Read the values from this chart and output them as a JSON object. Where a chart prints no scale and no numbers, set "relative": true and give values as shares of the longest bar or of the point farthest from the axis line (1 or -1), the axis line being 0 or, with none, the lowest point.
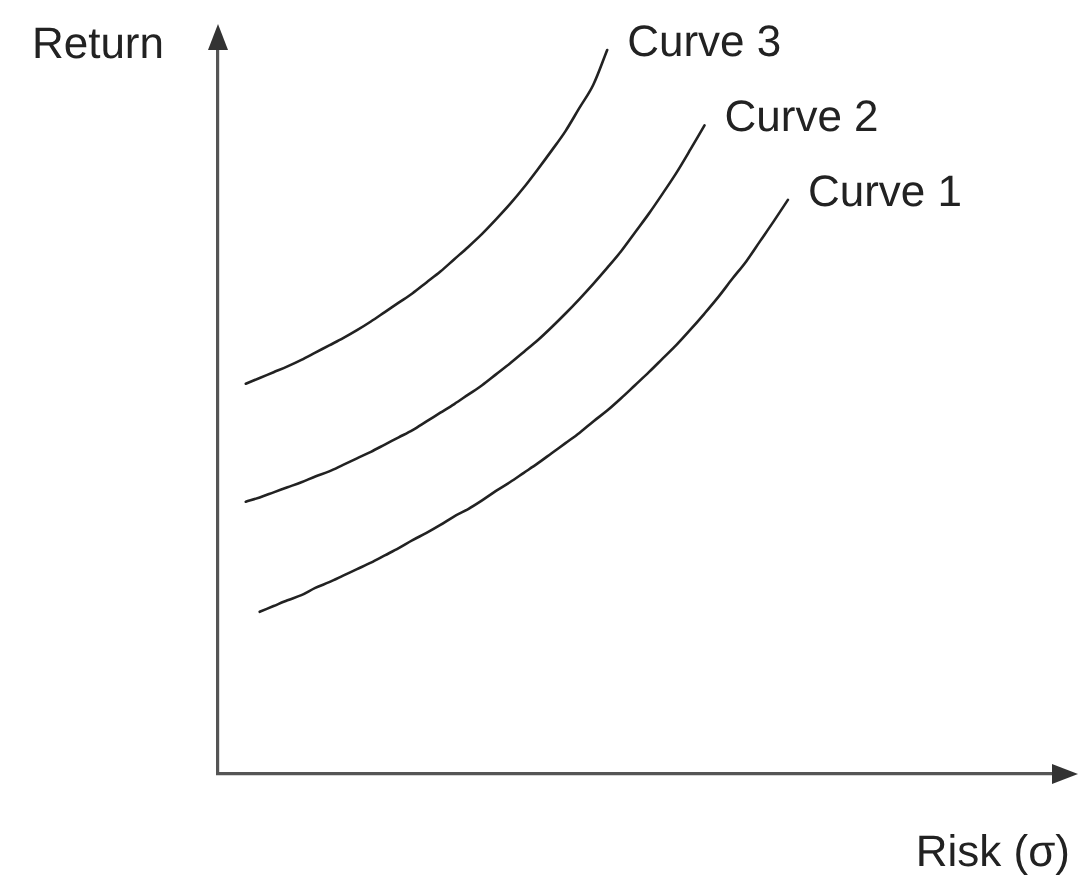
{
  "chart_data": {
    "type": "line",
    "relative": true,
    "xlabel": "Risk (σ)",
    "ylabel": "Return",
    "line_style": "solid",
    "categories": [
      null,
      null,
      null,
      null,
      null,
      null,
      null,
      null,
      null,
      null,
      null,
      null,
      null,
      null,
      null,
      null,
      null,
      null,
      null,
      null,
      null,
      null,
      null,
      null,
      null,
      null,
      null,
      null,
      null,
      null,
      null,
      null,
      null,
      null,
      null,
      null,
      null,
      null,
      null,
      null,
      null,
      null,
      null,
      null,
      null,
      null,
      null,
      null,
      null,
      null,
      null,
      null,
      null,
      null,
      null,
      null,
      null,
      null,
      null,
      null,
      null
    ],
    "series": [
      {
        "name": "Curve 1",
        "color": "#222222",
        "values": [
          null,
          null,
          null,
          0.224,
          0.232,
          0.24,
          0.247,
          0.257,
          0.265,
          0.274,
          0.283,
          0.292,
          0.302,
          0.312,
          0.323,
          0.333,
          0.344,
          0.356,
          0.366,
          0.378,
          0.391,
          0.403,
          0.416,
          0.429,
          0.443,
          0.457,
          0.471,
          0.487,
          0.502,
          0.519,
          0.537,
          0.555,
          0.574,
          0.593,
          0.614,
          0.636,
          0.659,
          0.684,
          0.708,
          0.736,
          0.764,
          0.793,
          null,
          null,
          null,
          null,
          null,
          null,
          null,
          null,
          null,
          null,
          null,
          null,
          null,
          null,
          null,
          null,
          null,
          null,
          null
        ]
      },
      {
        "name": "Curve 2",
        "color": "#222222",
        "values": [
          null,
          null,
          0.376,
          0.382,
          0.389,
          0.396,
          0.403,
          0.411,
          0.418,
          0.427,
          0.436,
          0.445,
          0.455,
          0.465,
          0.475,
          0.487,
          0.499,
          0.511,
          0.524,
          0.537,
          0.552,
          0.567,
          0.583,
          0.599,
          0.617,
          0.636,
          0.656,
          0.677,
          0.699,
          0.722,
          0.748,
          0.774,
          0.802,
          0.831,
          0.863,
          0.896,
          null,
          null,
          null,
          null,
          null,
          null,
          null,
          null,
          null,
          null,
          null,
          null,
          null,
          null,
          null,
          null,
          null,
          null,
          null,
          null,
          null,
          null,
          null,
          null,
          null
        ]
      },
      {
        "name": "Curve 3",
        "color": "#222222",
        "values": [
          null,
          null,
          0.539,
          0.547,
          0.555,
          0.563,
          0.572,
          0.582,
          0.592,
          0.602,
          0.613,
          0.625,
          0.638,
          0.651,
          0.664,
          0.679,
          0.694,
          0.711,
          0.728,
          0.746,
          0.766,
          0.787,
          0.81,
          0.835,
          0.861,
          0.888,
          0.92,
          0.952,
          1,
          null,
          null,
          null,
          null,
          null,
          null,
          null,
          null,
          null,
          null,
          null,
          null,
          null,
          null,
          null,
          null,
          null,
          null,
          null,
          null,
          null,
          null,
          null,
          null,
          null,
          null,
          null,
          null,
          null,
          null,
          null,
          null
        ]
      }
    ]
  }
}
